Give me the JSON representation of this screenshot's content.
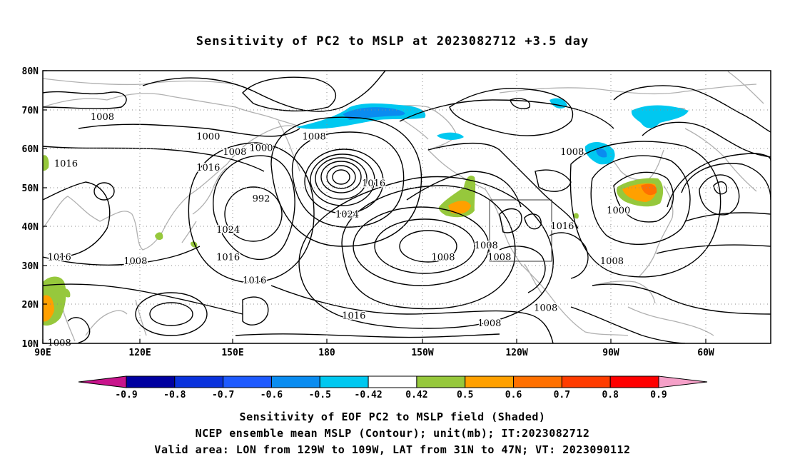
{
  "title": "Sensitivity of PC2 to MSLP at 2023082712 +3.5 day",
  "map": {
    "lat_labels": [
      "80N",
      "70N",
      "60N",
      "50N",
      "40N",
      "30N",
      "20N",
      "10N"
    ],
    "lon_labels": [
      "90E",
      "120E",
      "150E",
      "180",
      "150W",
      "120W",
      "90W",
      "60W"
    ],
    "contour_labels": [
      {
        "text": "1008",
        "lon": 108,
        "lat": 68
      },
      {
        "text": "1016",
        "lon": 97,
        "lat": 56
      },
      {
        "text": "1000",
        "lon": 140,
        "lat": 63
      },
      {
        "text": "1008",
        "lon": 148,
        "lat": 59
      },
      {
        "text": "1016",
        "lon": 140,
        "lat": 55
      },
      {
        "text": "1000",
        "lon": 156,
        "lat": 60
      },
      {
        "text": "992",
        "lon": 156,
        "lat": 47
      },
      {
        "text": "1008",
        "lon": 172,
        "lat": 63
      },
      {
        "text": "1024",
        "lon": 146,
        "lat": 39
      },
      {
        "text": "1016",
        "lon": 146,
        "lat": 32
      },
      {
        "text": "1016",
        "lon": 154,
        "lat": 26
      },
      {
        "text": "1016",
        "lon": 190,
        "lat": 51
      },
      {
        "text": "1024",
        "lon": 182,
        "lat": 43
      },
      {
        "text": "1016",
        "lon": 184,
        "lat": 17
      },
      {
        "text": "1008",
        "lon": 118,
        "lat": 31
      },
      {
        "text": "1016",
        "lon": 95,
        "lat": 32
      },
      {
        "text": "1008",
        "lon": 95,
        "lat": 10
      },
      {
        "text": "1008",
        "lon": 211,
        "lat": 32
      },
      {
        "text": "1008",
        "lon": 224,
        "lat": 35
      },
      {
        "text": "1008",
        "lon": 228,
        "lat": 32
      },
      {
        "text": "1016",
        "lon": 247,
        "lat": 40
      },
      {
        "text": "1008",
        "lon": 250,
        "lat": 59
      },
      {
        "text": "1000",
        "lon": 264,
        "lat": 44
      },
      {
        "text": "1008",
        "lon": 262,
        "lat": 31
      },
      {
        "text": "1008",
        "lon": 242,
        "lat": 19
      },
      {
        "text": "1008",
        "lon": 225,
        "lat": 15
      }
    ]
  },
  "colorbar": {
    "labels": [
      "-0.9",
      "-0.8",
      "-0.7",
      "-0.6",
      "-0.5",
      "-0.42",
      "0.42",
      "0.5",
      "0.6",
      "0.7",
      "0.8",
      "0.9"
    ],
    "colors": [
      "#0000a0",
      "#0a32dc",
      "#1e5aff",
      "#0a8cf0",
      "#00c8f0",
      "#ffffff",
      "#96c83c",
      "#ffa000",
      "#ff7000",
      "#ff3c00",
      "#ff0000"
    ],
    "low_end_color": "#c8148c",
    "high_end_color": "#f5a0c8"
  },
  "captions": {
    "line1": "Sensitivity of EOF PC2 to MSLP field (Shaded)",
    "line2": "NCEP ensemble mean MSLP (Contour); unit(mb); IT:2023082712",
    "line3": "Valid area: LON from 129W to 109W, LAT from 31N to 47N; VT: 2023090112"
  }
}
